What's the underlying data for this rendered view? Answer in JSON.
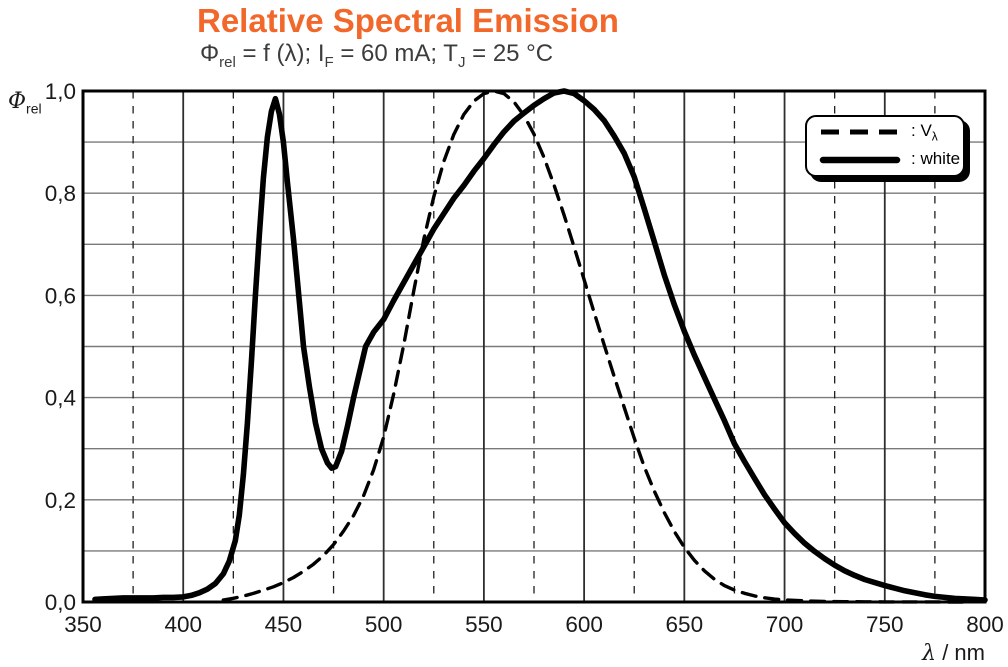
{
  "header": {
    "title": "Relative Spectral Emission",
    "subtitle": {
      "phi": "Φ",
      "phi_sub": "rel",
      "seg1": " = f (λ); I",
      "seg1_sub": "F",
      "seg2": " = 60 mA; T",
      "seg2_sub": "J",
      "seg3": " = 25 °C"
    }
  },
  "axes": {
    "y_label": {
      "symbol": "Φ",
      "sub": "rel"
    },
    "x_label": {
      "symbol": "λ",
      "unit": " / nm"
    }
  },
  "legend": {
    "items": [
      {
        "prefix": ": V",
        "sub": "λ",
        "style": "dashed"
      },
      {
        "prefix": ": white",
        "sub": "",
        "style": "solid"
      }
    ]
  },
  "colors": {
    "title": "#F2672A",
    "subtitle_text": "#3C3C3C",
    "curves": "#000000",
    "grid_horizontal": "#7A7A7A",
    "grid_vertical_solid": "#2E2E2E",
    "grid_vertical_dashed": "#1F1F1F",
    "axis_frame": "#000000"
  },
  "chart_data": {
    "type": "line",
    "title": "Relative Spectral Emission",
    "subtitle": "Φrel = f (λ); IF = 60 mA; TJ = 25 °C",
    "xlabel": "λ / nm",
    "ylabel": "Φrel",
    "xlim": [
      350,
      800
    ],
    "ylim": [
      0.0,
      1.0
    ],
    "x_ticks": [
      350,
      400,
      450,
      500,
      550,
      600,
      650,
      700,
      750,
      800
    ],
    "x_tick_labels": [
      "350",
      "400",
      "450",
      "500",
      "550",
      "600",
      "650",
      "700",
      "750",
      "800"
    ],
    "x_minor_gridlines": [
      375,
      425,
      475,
      525,
      575,
      625,
      675,
      725,
      775
    ],
    "y_ticks": [
      0.0,
      0.2,
      0.4,
      0.6,
      0.8,
      1.0
    ],
    "y_tick_labels": [
      "0,0",
      "0,2",
      "0,4",
      "0,6",
      "0,8",
      "1,0"
    ],
    "y_gridline_step": 0.1,
    "grid": true,
    "legend_position": "top-right",
    "series": [
      {
        "name": "V_lambda",
        "legend_label": ": Vλ",
        "style": "dashed",
        "x": [
          420,
          425,
          430,
          435,
          440,
          445,
          450,
          455,
          460,
          465,
          470,
          475,
          480,
          485,
          490,
          495,
          500,
          505,
          510,
          515,
          520,
          525,
          530,
          535,
          540,
          545,
          550,
          555,
          560,
          565,
          570,
          575,
          580,
          585,
          590,
          595,
          600,
          605,
          610,
          615,
          620,
          625,
          630,
          635,
          640,
          645,
          650,
          655,
          660,
          665,
          670,
          675,
          680,
          685,
          690,
          695,
          700,
          710,
          720,
          730,
          740,
          750,
          760,
          770,
          780,
          790
        ],
        "y": [
          0.004,
          0.0073,
          0.0116,
          0.0168,
          0.023,
          0.0298,
          0.038,
          0.048,
          0.06,
          0.0739,
          0.091,
          0.1126,
          0.139,
          0.1693,
          0.208,
          0.2586,
          0.323,
          0.4073,
          0.503,
          0.6082,
          0.71,
          0.7932,
          0.862,
          0.9149,
          0.954,
          0.9803,
          0.995,
          1.0,
          0.995,
          0.9786,
          0.952,
          0.9154,
          0.87,
          0.8163,
          0.757,
          0.6949,
          0.631,
          0.5668,
          0.503,
          0.4412,
          0.381,
          0.321,
          0.265,
          0.217,
          0.175,
          0.1382,
          0.107,
          0.0816,
          0.061,
          0.0446,
          0.032,
          0.0232,
          0.017,
          0.0119,
          0.0082,
          0.0057,
          0.0041,
          0.0021,
          0.001,
          0.0005,
          0.0003,
          0.0002,
          0.0001,
          0.0001,
          0.0,
          0.0
        ]
      },
      {
        "name": "white",
        "legend_label": ": white",
        "style": "solid",
        "x": [
          356,
          360,
          365,
          370,
          375,
          380,
          385,
          390,
          395,
          400,
          404,
          408,
          412,
          416,
          420,
          423,
          426,
          428,
          430,
          432,
          434,
          436,
          438,
          440,
          442,
          444,
          446,
          448,
          450,
          452,
          455,
          458,
          460,
          463,
          466,
          469,
          472,
          474,
          476,
          479,
          482,
          485,
          488,
          491,
          495,
          500,
          505,
          510,
          515,
          520,
          525,
          530,
          535,
          540,
          545,
          550,
          555,
          560,
          565,
          570,
          575,
          580,
          585,
          590,
          595,
          600,
          605,
          610,
          615,
          620,
          625,
          630,
          635,
          640,
          645,
          650,
          655,
          660,
          665,
          670,
          675,
          680,
          685,
          690,
          695,
          700,
          705,
          710,
          715,
          720,
          725,
          730,
          735,
          740,
          745,
          750,
          755,
          760,
          765,
          770,
          775,
          780,
          785,
          790,
          795,
          800
        ],
        "y": [
          0.005,
          0.006,
          0.007,
          0.008,
          0.008,
          0.008,
          0.008,
          0.009,
          0.009,
          0.01,
          0.013,
          0.018,
          0.025,
          0.036,
          0.055,
          0.08,
          0.12,
          0.17,
          0.25,
          0.35,
          0.47,
          0.6,
          0.72,
          0.83,
          0.91,
          0.96,
          0.985,
          0.955,
          0.9,
          0.82,
          0.71,
          0.585,
          0.5,
          0.42,
          0.35,
          0.3,
          0.272,
          0.262,
          0.265,
          0.295,
          0.345,
          0.4,
          0.45,
          0.5,
          0.528,
          0.553,
          0.59,
          0.625,
          0.66,
          0.695,
          0.73,
          0.76,
          0.79,
          0.815,
          0.843,
          0.868,
          0.895,
          0.92,
          0.941,
          0.957,
          0.972,
          0.985,
          0.996,
          1.0,
          0.995,
          0.981,
          0.964,
          0.942,
          0.912,
          0.878,
          0.832,
          0.77,
          0.705,
          0.64,
          0.582,
          0.53,
          0.483,
          0.44,
          0.397,
          0.355,
          0.31,
          0.275,
          0.242,
          0.21,
          0.182,
          0.155,
          0.134,
          0.115,
          0.099,
          0.085,
          0.072,
          0.061,
          0.052,
          0.044,
          0.038,
          0.032,
          0.027,
          0.022,
          0.018,
          0.014,
          0.011,
          0.009,
          0.007,
          0.006,
          0.005,
          0.004
        ]
      }
    ]
  }
}
